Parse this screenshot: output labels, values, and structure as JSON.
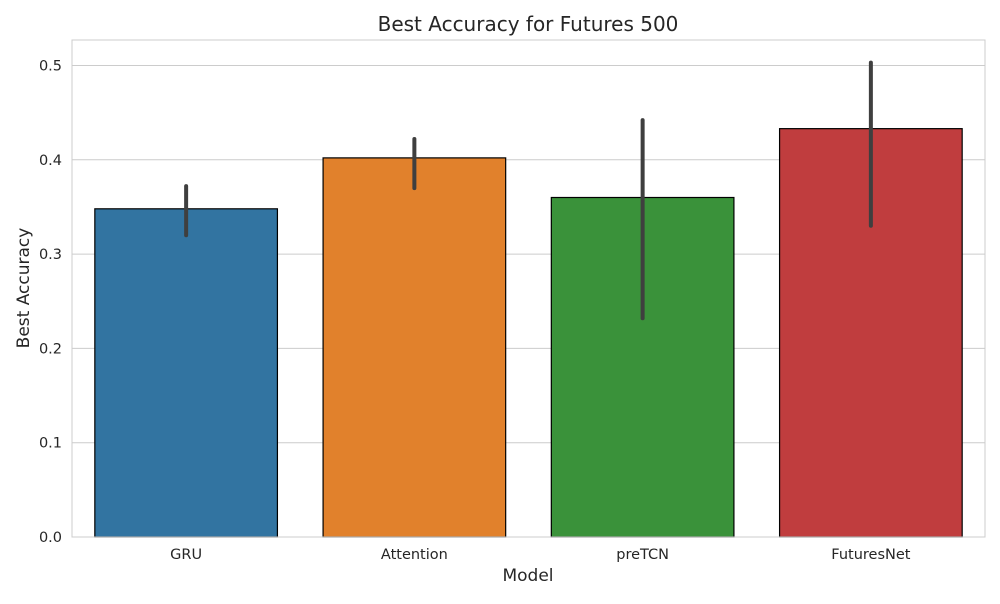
{
  "chart_data": {
    "type": "bar",
    "title": "Best Accuracy for Futures 500",
    "xlabel": "Model",
    "ylabel": "Best Accuracy",
    "categories": [
      "GRU",
      "Attention",
      "preTCN",
      "FuturesNet"
    ],
    "values": [
      0.348,
      0.402,
      0.36,
      0.433
    ],
    "error_bars": [
      {
        "low": 0.32,
        "high": 0.372
      },
      {
        "low": 0.37,
        "high": 0.422
      },
      {
        "low": 0.232,
        "high": 0.442
      },
      {
        "low": 0.33,
        "high": 0.503
      }
    ],
    "colors": [
      "#3274a1",
      "#e1812c",
      "#3a923a",
      "#c03d3e"
    ],
    "ylim": [
      0,
      0.527
    ],
    "yticks": [
      0.0,
      0.1,
      0.2,
      0.3,
      0.4,
      0.5
    ],
    "ytick_labels": [
      "0.0",
      "0.1",
      "0.2",
      "0.3",
      "0.4",
      "0.5"
    ],
    "grid": "horizontal",
    "legend": "none"
  }
}
